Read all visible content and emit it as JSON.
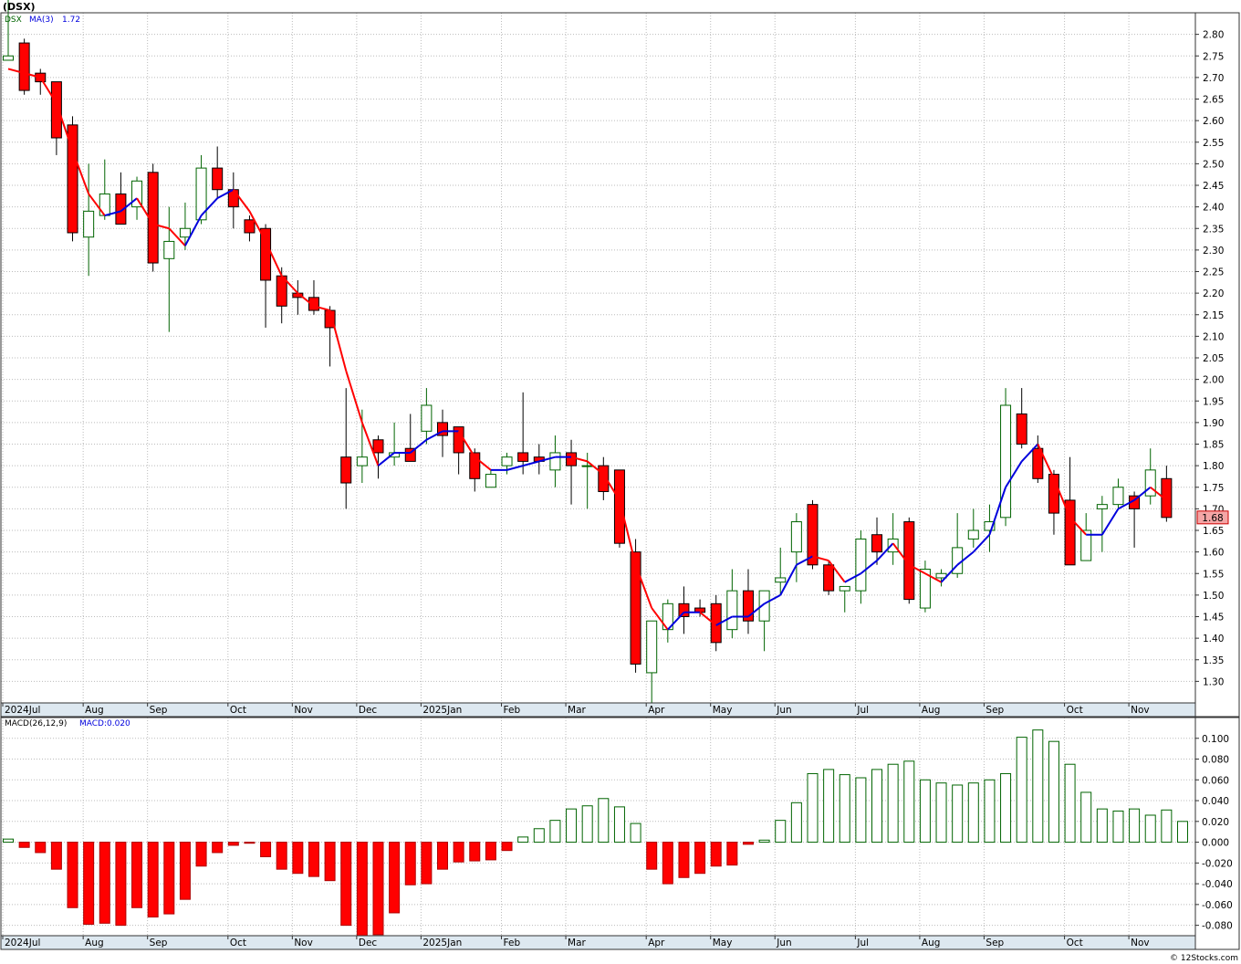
{
  "title": "(DSX)",
  "legend": {
    "symbol": "DSX",
    "ma_label": "MA(3)",
    "ma_value": "1.72"
  },
  "macd_legend": {
    "params": "MACD(26,12,9)",
    "value_label": "MACD:0.020"
  },
  "last_price_label": "1.68",
  "watermark": "© 12Stocks.com",
  "colors": {
    "up": "#006400",
    "down": "#ff0000",
    "ma_up": "#0000dd",
    "ma_down": "#ff0000",
    "grid": "#bbbbbb",
    "axis_bg": "#dde8f0",
    "frame": "#333333"
  },
  "x_axis_labels": [
    "2024Jul",
    "Aug",
    "Sep",
    "Oct",
    "Nov",
    "Dec",
    "2025Jan",
    "Feb",
    "Mar",
    "Apr",
    "May",
    "Jun",
    "Jul",
    "Aug",
    "Sep",
    "Oct",
    "Nov"
  ],
  "x_axis_label_week_index": [
    0,
    5,
    9,
    14,
    18,
    22,
    26,
    31,
    35,
    40,
    44,
    48,
    53,
    57,
    61,
    66,
    70
  ],
  "chart_data": [
    {
      "type": "candlestick",
      "title": "(DSX)",
      "ylim": [
        1.25,
        2.85
      ],
      "y_ticks": [
        1.3,
        1.35,
        1.4,
        1.45,
        1.5,
        1.55,
        1.6,
        1.65,
        1.7,
        1.75,
        1.8,
        1.85,
        1.9,
        1.95,
        2.0,
        2.05,
        2.1,
        2.15,
        2.2,
        2.25,
        2.3,
        2.35,
        2.4,
        2.45,
        2.5,
        2.55,
        2.6,
        2.65,
        2.7,
        2.75,
        2.8
      ],
      "grid": true,
      "ohlc": [
        [
          2.74,
          2.88,
          2.74,
          2.75
        ],
        [
          2.78,
          2.79,
          2.66,
          2.67
        ],
        [
          2.71,
          2.72,
          2.66,
          2.69
        ],
        [
          2.69,
          2.69,
          2.52,
          2.56
        ],
        [
          2.59,
          2.61,
          2.32,
          2.34
        ],
        [
          2.33,
          2.5,
          2.24,
          2.39
        ],
        [
          2.38,
          2.51,
          2.37,
          2.43
        ],
        [
          2.43,
          2.48,
          2.36,
          2.36
        ],
        [
          2.4,
          2.47,
          2.37,
          2.46
        ],
        [
          2.48,
          2.5,
          2.25,
          2.27
        ],
        [
          2.28,
          2.4,
          2.11,
          2.32
        ],
        [
          2.33,
          2.41,
          2.3,
          2.35
        ],
        [
          2.37,
          2.52,
          2.36,
          2.49
        ],
        [
          2.49,
          2.54,
          2.42,
          2.44
        ],
        [
          2.44,
          2.48,
          2.35,
          2.4
        ],
        [
          2.37,
          2.38,
          2.32,
          2.34
        ],
        [
          2.35,
          2.36,
          2.12,
          2.23
        ],
        [
          2.24,
          2.26,
          2.13,
          2.17
        ],
        [
          2.2,
          2.23,
          2.15,
          2.19
        ],
        [
          2.19,
          2.23,
          2.15,
          2.16
        ],
        [
          2.16,
          2.17,
          2.03,
          2.12
        ],
        [
          1.82,
          1.98,
          1.7,
          1.76
        ],
        [
          1.8,
          1.93,
          1.76,
          1.82
        ],
        [
          1.86,
          1.87,
          1.77,
          1.83
        ],
        [
          1.82,
          1.9,
          1.8,
          1.83
        ],
        [
          1.84,
          1.92,
          1.81,
          1.81
        ],
        [
          1.88,
          1.98,
          1.85,
          1.94
        ],
        [
          1.9,
          1.93,
          1.82,
          1.87
        ],
        [
          1.89,
          1.89,
          1.78,
          1.83
        ],
        [
          1.83,
          1.84,
          1.74,
          1.77
        ],
        [
          1.75,
          1.79,
          1.75,
          1.78
        ],
        [
          1.8,
          1.83,
          1.78,
          1.82
        ],
        [
          1.83,
          1.97,
          1.78,
          1.81
        ],
        [
          1.82,
          1.85,
          1.78,
          1.81
        ],
        [
          1.79,
          1.87,
          1.75,
          1.83
        ],
        [
          1.83,
          1.86,
          1.71,
          1.8
        ],
        [
          1.8,
          1.83,
          1.7,
          1.8
        ],
        [
          1.8,
          1.82,
          1.72,
          1.74
        ],
        [
          1.79,
          1.79,
          1.61,
          1.62
        ],
        [
          1.6,
          1.63,
          1.32,
          1.34
        ],
        [
          1.32,
          1.43,
          1.25,
          1.44
        ],
        [
          1.42,
          1.49,
          1.39,
          1.48
        ],
        [
          1.48,
          1.52,
          1.41,
          1.45
        ],
        [
          1.47,
          1.49,
          1.45,
          1.46
        ],
        [
          1.48,
          1.5,
          1.37,
          1.39
        ],
        [
          1.42,
          1.56,
          1.4,
          1.51
        ],
        [
          1.51,
          1.56,
          1.41,
          1.44
        ],
        [
          1.44,
          1.51,
          1.37,
          1.51
        ],
        [
          1.53,
          1.61,
          1.5,
          1.54
        ],
        [
          1.6,
          1.69,
          1.53,
          1.67
        ],
        [
          1.71,
          1.72,
          1.56,
          1.57
        ],
        [
          1.57,
          1.58,
          1.5,
          1.51
        ],
        [
          1.51,
          1.52,
          1.46,
          1.52
        ],
        [
          1.51,
          1.65,
          1.48,
          1.63
        ],
        [
          1.64,
          1.68,
          1.57,
          1.6
        ],
        [
          1.6,
          1.69,
          1.57,
          1.63
        ],
        [
          1.67,
          1.68,
          1.48,
          1.49
        ],
        [
          1.47,
          1.58,
          1.46,
          1.56
        ],
        [
          1.54,
          1.56,
          1.52,
          1.55
        ],
        [
          1.55,
          1.69,
          1.54,
          1.61
        ],
        [
          1.63,
          1.7,
          1.61,
          1.65
        ],
        [
          1.65,
          1.71,
          1.6,
          1.67
        ],
        [
          1.68,
          1.98,
          1.66,
          1.94
        ],
        [
          1.92,
          1.98,
          1.84,
          1.85
        ],
        [
          1.84,
          1.87,
          1.76,
          1.77
        ],
        [
          1.78,
          1.79,
          1.64,
          1.69
        ],
        [
          1.72,
          1.82,
          1.57,
          1.57
        ],
        [
          1.58,
          1.69,
          1.58,
          1.65
        ],
        [
          1.7,
          1.73,
          1.6,
          1.71
        ],
        [
          1.71,
          1.77,
          1.7,
          1.75
        ],
        [
          1.73,
          1.74,
          1.61,
          1.7
        ],
        [
          1.73,
          1.84,
          1.71,
          1.79
        ],
        [
          1.77,
          1.8,
          1.67,
          1.68
        ]
      ],
      "ma3": [
        2.72,
        2.71,
        2.7,
        2.64,
        2.53,
        2.43,
        2.38,
        2.39,
        2.42,
        2.36,
        2.35,
        2.31,
        2.38,
        2.42,
        2.44,
        2.39,
        2.32,
        2.24,
        2.2,
        2.17,
        2.16,
        2.02,
        1.9,
        1.8,
        1.83,
        1.83,
        1.86,
        1.88,
        1.88,
        1.82,
        1.79,
        1.79,
        1.8,
        1.81,
        1.82,
        1.82,
        1.81,
        1.78,
        1.72,
        1.57,
        1.47,
        1.42,
        1.46,
        1.46,
        1.43,
        1.45,
        1.45,
        1.48,
        1.5,
        1.57,
        1.59,
        1.58,
        1.53,
        1.55,
        1.58,
        1.62,
        1.57,
        1.55,
        1.53,
        1.57,
        1.6,
        1.64,
        1.75,
        1.81,
        1.85,
        1.77,
        1.68,
        1.64,
        1.64,
        1.7,
        1.72,
        1.75,
        1.72
      ]
    },
    {
      "type": "bar",
      "title": "MACD(26,12,9)",
      "ylim": [
        -0.09,
        0.12
      ],
      "y_ticks": [
        -0.08,
        -0.06,
        -0.04,
        -0.02,
        0.0,
        0.02,
        0.04,
        0.06,
        0.08,
        0.1
      ],
      "values": [
        0.003,
        -0.005,
        -0.01,
        -0.026,
        -0.063,
        -0.079,
        -0.078,
        -0.08,
        -0.063,
        -0.072,
        -0.069,
        -0.055,
        -0.023,
        -0.01,
        -0.003,
        -0.001,
        -0.014,
        -0.026,
        -0.03,
        -0.033,
        -0.037,
        -0.08,
        -0.09,
        -0.089,
        -0.068,
        -0.041,
        -0.04,
        -0.026,
        -0.019,
        -0.018,
        -0.017,
        -0.008,
        0.005,
        0.013,
        0.021,
        0.032,
        0.035,
        0.042,
        0.034,
        0.018,
        -0.026,
        -0.04,
        -0.034,
        -0.03,
        -0.023,
        -0.022,
        -0.002,
        0.002,
        0.021,
        0.038,
        0.066,
        0.07,
        0.065,
        0.062,
        0.07,
        0.075,
        0.078,
        0.06,
        0.057,
        0.055,
        0.057,
        0.06,
        0.066,
        0.101,
        0.108,
        0.097,
        0.075,
        0.048,
        0.032,
        0.03,
        0.032,
        0.026,
        0.031,
        0.02
      ]
    }
  ]
}
